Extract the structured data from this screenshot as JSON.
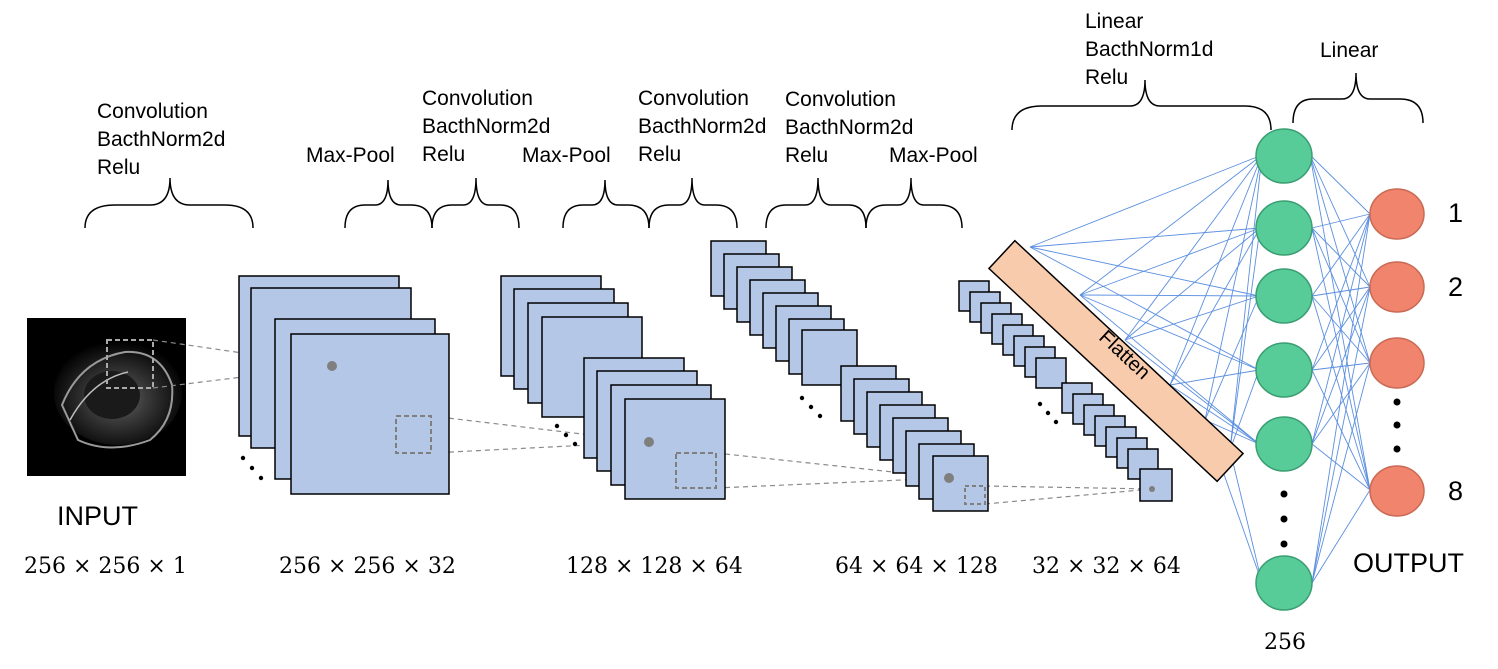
{
  "labels": {
    "block1": [
      "Convolution",
      "BacthNorm2d",
      "Relu"
    ],
    "pool1": "Max-Pool",
    "block2": [
      "Convolution",
      "BacthNorm2d",
      "Relu"
    ],
    "pool2": "Max-Pool",
    "block3": [
      "Convolution",
      "BacthNorm2d",
      "Relu"
    ],
    "block4": [
      "Convolution",
      "BacthNorm2d",
      "Relu"
    ],
    "pool3": "Max-Pool",
    "fc1": [
      "Linear",
      "BacthNorm1d",
      "Relu"
    ],
    "fc2": "Linear"
  },
  "input_label": "INPUT",
  "output_label": "OUTPUT",
  "flatten_label": "Flatten",
  "dimensions": {
    "input": "256 × 256 × 1",
    "stage1": "256 × 256 × 32",
    "stage2": "128 × 128 × 64",
    "stage3": "64 × 64 × 128",
    "stage4": "32 × 32 × 64",
    "hidden_units": "256"
  },
  "output_nodes": [
    "1",
    "2",
    "8"
  ],
  "colors": {
    "feature_map": "#b4c7e7",
    "hidden_node": "#57cc99",
    "output_node": "#f0846c",
    "flatten": "#f8cbad",
    "connection": "#4a86e8"
  }
}
